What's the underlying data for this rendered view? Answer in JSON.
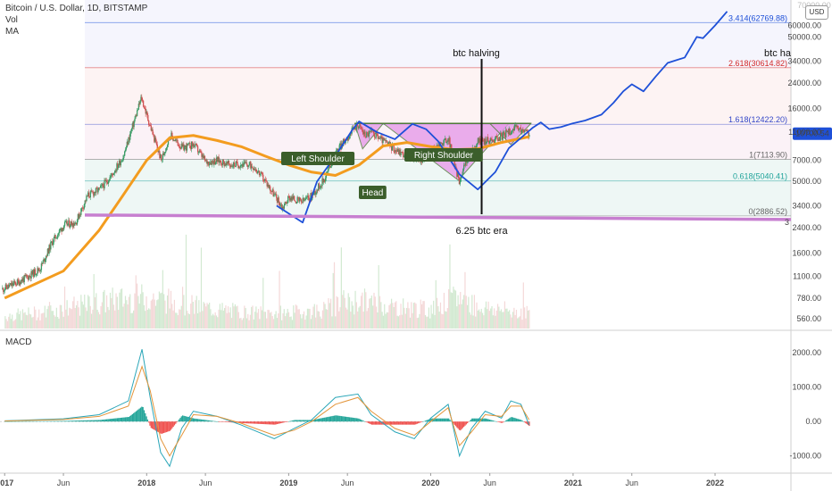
{
  "header": {
    "title": "Bitcoin / U.S. Dollar, 1D, BITSTAMP",
    "indicator_vol": "Vol",
    "indicator_ma": "MA",
    "currency_button": "USD",
    "macd_label": "MACD"
  },
  "colors": {
    "price": "#1e50d8",
    "ma": "#f39c1f",
    "support": "#c77fd0",
    "pattern_fill": "#e79be9",
    "pattern_label_bg": "#3b5e2b",
    "macd_line": "#2aa6b8",
    "signal_line": "#e3953a",
    "hist_pos": "#26a69a",
    "hist_neg": "#ef5350",
    "price_badge": "#1e50d8"
  },
  "annotations": {
    "halving_label": "btc halving",
    "halving_label_right": "btc ha",
    "era_label": "6.25 btc era",
    "left_shoulder": "Left Shoulder",
    "head": "Head",
    "right_shoulder": "Right Shoulder",
    "current_price": "10700.54",
    "support_right_number": "3",
    "top_faded_label": "70000.00"
  },
  "chart_data": {
    "type": "line",
    "title": "Bitcoin / U.S. Dollar, 1D, BITSTAMP",
    "y_scale": "log",
    "ylim": [
      480,
      90000
    ],
    "x_ticks": [
      "2017",
      "Jun",
      "2018",
      "Jun",
      "2019",
      "Jun",
      "2020",
      "Jun",
      "2021",
      "Jun",
      "2022"
    ],
    "x_tick_dates": [
      "2017-01-01",
      "2017-06-01",
      "2018-01-01",
      "2018-06-01",
      "2019-01-01",
      "2019-06-01",
      "2020-01-01",
      "2020-06-01",
      "2021-01-01",
      "2021-06-01",
      "2022-01-01"
    ],
    "x_range": [
      "2016-12-20",
      "2022-07-15"
    ],
    "y_ticks": [
      "60000.00",
      "50000.00",
      "34000.00",
      "24000.00",
      "16000.00",
      "11000.00",
      "7000.00",
      "5000.00",
      "3400.00",
      "2400.00",
      "1600.00",
      "1100.00",
      "780.00",
      "560.00"
    ],
    "fib_levels": [
      {
        "ratio": "0",
        "price": 2886.52,
        "label": "0(2886.52)",
        "color": "#666666"
      },
      {
        "ratio": "0.618",
        "price": 5040.41,
        "label": "0.618(5040.41)",
        "color": "#1fa39a"
      },
      {
        "ratio": "1",
        "price": 7113.9,
        "label": "1(7113.90)",
        "color": "#666666"
      },
      {
        "ratio": "1.618",
        "price": 12422.2,
        "label": "1.618(12422.20)",
        "color": "#3346c8"
      },
      {
        "ratio": "2.618",
        "price": 30614.82,
        "label": "2.618(30614.82)",
        "color": "#d42a2a"
      },
      {
        "ratio": "3.414",
        "price": 62769.88,
        "label": "3.414(62769.88)",
        "color": "#1e50d8"
      }
    ],
    "series": [
      {
        "name": "",
        "style": "candles",
        "x": [
          "2016-12-25",
          "2017-02-01",
          "2017-03-01",
          "2017-04-01",
          "2017-05-01",
          "2017-06-01",
          "2017-07-01",
          "2017-08-01",
          "2017-09-01",
          "2017-10-01",
          "2017-11-01",
          "2017-12-17",
          "2018-01-01",
          "2018-02-06",
          "2018-03-01",
          "2018-04-01",
          "2018-05-01",
          "2018-06-01",
          "2018-07-01",
          "2018-08-01",
          "2018-09-01",
          "2018-10-01",
          "2018-11-01",
          "2018-12-15",
          "2019-01-01",
          "2019-02-01",
          "2019-03-01",
          "2019-04-01",
          "2019-05-01",
          "2019-06-26",
          "2019-07-15",
          "2019-08-01",
          "2019-09-01",
          "2019-10-01",
          "2019-11-01",
          "2019-12-15",
          "2020-01-15",
          "2020-02-15",
          "2020-03-12",
          "2020-04-01",
          "2020-05-01",
          "2020-06-01",
          "2020-07-01",
          "2020-08-01",
          "2020-09-10"
        ],
        "values": [
          900,
          1000,
          1100,
          1250,
          1900,
          2500,
          2600,
          4000,
          4400,
          5500,
          7500,
          19000,
          14000,
          7000,
          10500,
          8500,
          9000,
          6800,
          7000,
          6500,
          6600,
          6400,
          5000,
          3300,
          3900,
          3600,
          4000,
          5200,
          8000,
          12500,
          10500,
          11000,
          9500,
          8300,
          7500,
          7100,
          8800,
          9800,
          5000,
          7000,
          9500,
          9600,
          10300,
          11700,
          10700
        ]
      },
      {
        "name": "",
        "style": "line",
        "x": [
          "2017-01-01",
          "2017-06-01",
          "2017-09-01",
          "2017-11-01",
          "2018-01-01",
          "2018-03-01",
          "2018-05-01",
          "2018-07-01",
          "2018-09-01",
          "2018-11-01",
          "2019-01-01",
          "2019-03-01",
          "2019-05-01",
          "2019-07-01",
          "2019-09-01",
          "2019-11-01",
          "2020-01-01",
          "2020-03-01",
          "2020-05-01",
          "2020-07-01",
          "2020-09-10"
        ],
        "values": [
          780,
          1200,
          2300,
          4000,
          7000,
          10000,
          10400,
          9600,
          8700,
          7500,
          6500,
          5800,
          5500,
          6500,
          8800,
          9300,
          8700,
          8300,
          8400,
          9300,
          10200
        ]
      },
      {
        "name": "",
        "style": "projection",
        "x": [
          "2018-12-01",
          "2019-02-06",
          "2019-03-15",
          "2019-05-01",
          "2019-06-15",
          "2019-07-01",
          "2019-08-15",
          "2019-10-01",
          "2019-11-15",
          "2019-12-20",
          "2020-01-20",
          "2020-03-15",
          "2020-05-01",
          "2020-06-15",
          "2020-07-20",
          "2020-08-20",
          "2020-09-20",
          "2020-10-10",
          "2020-11-01",
          "2020-12-01",
          "2020-12-31",
          "2021-02-01",
          "2021-03-15",
          "2021-04-15",
          "2021-05-10",
          "2021-06-01",
          "2021-07-01",
          "2021-08-01",
          "2021-09-01",
          "2021-10-15",
          "2021-11-15",
          "2021-12-01",
          "2022-01-01",
          "2022-02-01"
        ],
        "values": [
          3400,
          2600,
          5000,
          7500,
          11500,
          13000,
          11000,
          9800,
          12500,
          11500,
          9500,
          5600,
          4400,
          5800,
          8500,
          10000,
          11800,
          12800,
          11500,
          11900,
          12600,
          13200,
          14500,
          17500,
          21000,
          23500,
          21000,
          26500,
          33000,
          36000,
          50000,
          49000,
          60000,
          75000
        ]
      }
    ],
    "volume": {
      "x": [
        "2017-01-01",
        "2017-04-01",
        "2017-07-01",
        "2017-10-01",
        "2018-01-01",
        "2018-04-01",
        "2018-07-01",
        "2018-10-01",
        "2019-01-01",
        "2019-04-01",
        "2019-07-01",
        "2019-10-01",
        "2020-01-01",
        "2020-03-12",
        "2020-05-01",
        "2020-07-01",
        "2020-09-10"
      ],
      "values": [
        0.4,
        0.5,
        0.7,
        0.9,
        1.0,
        0.8,
        0.6,
        0.5,
        0.5,
        0.6,
        0.9,
        0.7,
        0.6,
        1.0,
        0.7,
        0.6,
        0.5
      ]
    },
    "macd": {
      "y_ticks": [
        "2000.00",
        "1000.00",
        "0.00",
        "-1000.00"
      ],
      "ylim": [
        -1500,
        2600
      ],
      "x": [
        "2017-01-01",
        "2017-06-01",
        "2017-09-01",
        "2017-11-15",
        "2017-12-20",
        "2018-01-10",
        "2018-02-06",
        "2018-03-01",
        "2018-04-01",
        "2018-05-01",
        "2018-07-01",
        "2018-09-01",
        "2018-11-25",
        "2019-01-15",
        "2019-03-01",
        "2019-05-01",
        "2019-06-28",
        "2019-08-01",
        "2019-10-01",
        "2019-11-20",
        "2020-01-01",
        "2020-02-15",
        "2020-03-15",
        "2020-04-15",
        "2020-05-20",
        "2020-07-01",
        "2020-07-25",
        "2020-08-20",
        "2020-09-10"
      ],
      "values": [
        20,
        80,
        200,
        600,
        2100,
        700,
        -900,
        -1300,
        -200,
        300,
        150,
        -100,
        -500,
        -200,
        50,
        700,
        800,
        200,
        -300,
        -500,
        100,
        500,
        -1000,
        -200,
        300,
        100,
        600,
        500,
        -100
      ],
      "signal": [
        15,
        60,
        150,
        450,
        1600,
        900,
        -500,
        -1000,
        -400,
        200,
        150,
        -50,
        -400,
        -250,
        0,
        500,
        700,
        300,
        -200,
        -400,
        0,
        400,
        -700,
        -300,
        200,
        150,
        450,
        450,
        50
      ]
    },
    "xlabel": "",
    "ylabel": ""
  }
}
